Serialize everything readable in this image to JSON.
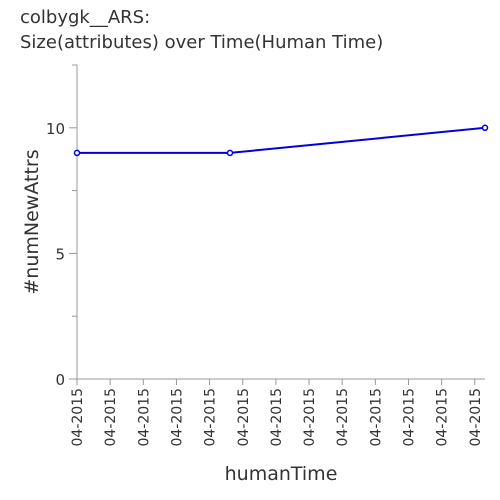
{
  "chart_data": {
    "type": "line",
    "title_lines": [
      "colbygk__ARS:",
      "Size(attributes) over Time(Human Time)"
    ],
    "xlabel": "humanTime",
    "ylabel": "#numNewAttrs",
    "x_tick_labels": [
      "04-2015",
      "04-2015",
      "04-2015",
      "04-2015",
      "04-2015",
      "04-2015",
      "04-2015",
      "04-2015",
      "04-2015",
      "04-2015",
      "04-2015",
      "04-2015",
      "04-2015"
    ],
    "y_tick_labels": [
      "0",
      "5",
      "10"
    ],
    "ylim": [
      0,
      12.5
    ],
    "y_major_ticks": [
      0,
      5,
      10
    ],
    "y_minor_ticks": [
      2.5,
      7.5,
      12.5
    ],
    "series": [
      {
        "color": "#0000dd",
        "points": [
          {
            "x": 0,
            "y": 9
          },
          {
            "x": 6,
            "y": 9
          },
          {
            "x": 16,
            "y": 10
          }
        ]
      }
    ],
    "xlim": [
      0,
      16
    ],
    "x_tick_positions": [
      0,
      1.3,
      2.6,
      3.9,
      5.2,
      6.5,
      7.8,
      9.1,
      10.4,
      11.7,
      13.0,
      14.3,
      15.6
    ],
    "grid": false
  }
}
